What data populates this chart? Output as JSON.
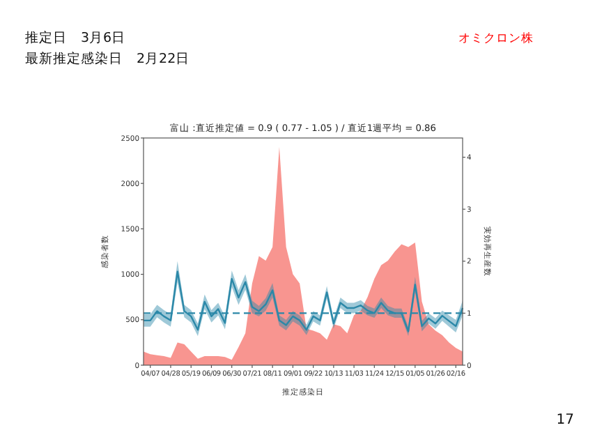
{
  "chart_data": {
    "type": "area",
    "title": "富山 :直近推定値 = 0.9 ( 0.77 - 1.05 ) / 直近1週平均 = 0.86",
    "xlabel": "推定感染日",
    "ylabel": "感染者数",
    "y2label": "実効再生産数",
    "annotations": [
      "推定日　3月6日",
      "最新推定感染日　2月22日",
      "オミクロン株",
      "17"
    ],
    "categories": [
      null,
      "04/07",
      null,
      null,
      "04/28",
      null,
      null,
      "05/19",
      null,
      null,
      "06/09",
      null,
      null,
      "06/30",
      null,
      null,
      "07/21",
      null,
      null,
      "08/11",
      null,
      null,
      "09/01",
      null,
      null,
      "09/22",
      null,
      null,
      "10/13",
      null,
      null,
      "11/03",
      null,
      null,
      "11/24",
      null,
      null,
      "12/15",
      null,
      null,
      "01/05",
      null,
      null,
      "01/26",
      null,
      null,
      "02/16",
      null
    ],
    "series": [
      {
        "color": "#f7837c",
        "values": [
          150,
          120,
          110,
          100,
          80,
          250,
          230,
          150,
          70,
          100,
          100,
          100,
          90,
          60,
          200,
          350,
          900,
          1200,
          1150,
          1300,
          2400,
          1300,
          1000,
          900,
          400,
          380,
          350,
          280,
          450,
          430,
          350,
          550,
          600,
          750,
          950,
          1100,
          1150,
          1250,
          1330,
          1300,
          1350,
          700,
          450,
          380,
          330,
          250,
          190,
          150
        ]
      },
      {
        "type": "line",
        "axis": "y2",
        "color": "#2b88a8",
        "values": [
          0.86,
          0.86,
          1.04,
          0.94,
          0.86,
          1.8,
          1.04,
          0.94,
          0.68,
          1.22,
          0.94,
          1.08,
          0.81,
          1.66,
          1.3,
          1.6,
          1.12,
          1.04,
          1.17,
          1.44,
          0.86,
          0.77,
          0.94,
          0.86,
          0.68,
          0.94,
          0.86,
          1.4,
          0.8,
          1.2,
          1.1,
          1.1,
          1.15,
          1.05,
          1.0,
          1.2,
          1.05,
          1.0,
          1.0,
          0.65,
          1.55,
          0.75,
          0.9,
          0.8,
          0.95,
          0.85,
          0.75,
          1.1
        ],
        "lower": [
          0.74,
          0.74,
          0.92,
          0.82,
          0.74,
          1.6,
          0.92,
          0.82,
          0.56,
          1.08,
          0.82,
          0.96,
          0.69,
          1.5,
          1.16,
          1.45,
          1.0,
          0.94,
          1.05,
          1.3,
          0.76,
          0.67,
          0.84,
          0.76,
          0.58,
          0.84,
          0.76,
          1.28,
          0.7,
          1.1,
          1.0,
          1.0,
          1.05,
          0.96,
          0.91,
          1.1,
          0.96,
          0.91,
          0.91,
          0.56,
          1.4,
          0.65,
          0.8,
          0.7,
          0.85,
          0.74,
          0.63,
          0.96
        ],
        "upper": [
          0.98,
          0.98,
          1.16,
          1.06,
          0.98,
          2.0,
          1.16,
          1.06,
          0.8,
          1.36,
          1.06,
          1.2,
          0.93,
          1.82,
          1.44,
          1.75,
          1.24,
          1.14,
          1.29,
          1.58,
          0.96,
          0.87,
          1.04,
          0.96,
          0.78,
          1.04,
          0.96,
          1.52,
          0.9,
          1.3,
          1.2,
          1.2,
          1.25,
          1.14,
          1.09,
          1.3,
          1.14,
          1.09,
          1.09,
          0.74,
          1.7,
          0.85,
          1.0,
          0.9,
          1.05,
          0.96,
          0.87,
          1.24
        ]
      }
    ],
    "ylim": [
      0,
      2500
    ],
    "yticks": [
      0,
      500,
      1000,
      1500,
      2000,
      2500
    ],
    "y2lim": [
      0,
      4.37
    ],
    "y2ticks": [
      0,
      1,
      2,
      3,
      4
    ],
    "ref_lines": [
      {
        "axis": "y2",
        "value": 1,
        "color": "#2b88a8",
        "line_style": "dashed"
      }
    ]
  }
}
